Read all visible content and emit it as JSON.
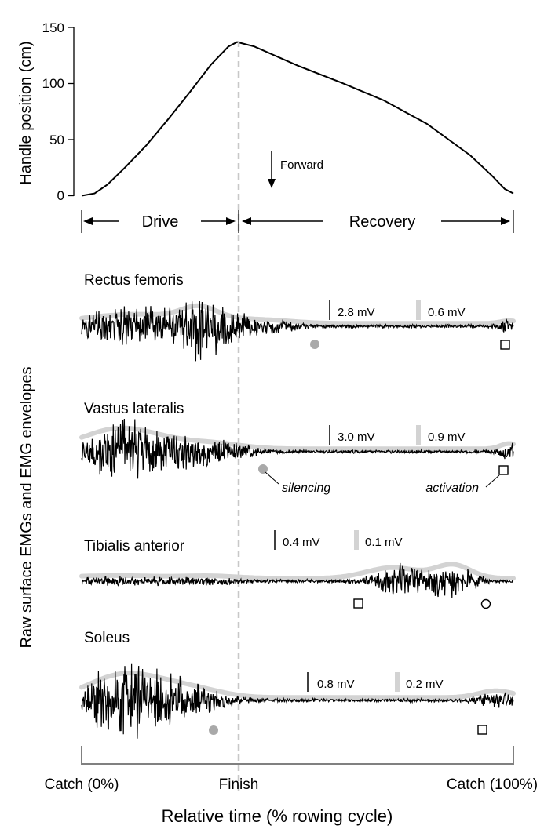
{
  "chart_data": {
    "type": "line",
    "top_panel": {
      "ylabel": "Handle position (cm)",
      "y_ticks": [
        "0",
        "50",
        "100",
        "150"
      ],
      "ylim": [
        0,
        150
      ],
      "x_range_percent": [
        0,
        100
      ],
      "finish_percent": 36,
      "peak_value": 137,
      "series": [
        {
          "x": [
            0,
            3,
            6,
            10,
            15,
            20,
            25,
            30,
            34,
            36,
            40,
            50,
            60,
            70,
            80,
            90,
            95,
            98,
            100
          ],
          "y": [
            0,
            2,
            10,
            25,
            45,
            68,
            92,
            117,
            133,
            137,
            133,
            116,
            101,
            85,
            64,
            36,
            18,
            6,
            2
          ]
        }
      ],
      "annotation": "Forward"
    },
    "phases": {
      "drive": "Drive",
      "recovery": "Recovery"
    },
    "emg_ylabel": "Raw surface EMGs and EMG envelopes",
    "muscles": [
      {
        "name": "Rectus femoris",
        "raw_scale": "2.8 mV",
        "env_scale": "0.6 mV"
      },
      {
        "name": "Vastus lateralis",
        "raw_scale": "3.0 mV",
        "env_scale": "0.9 mV"
      },
      {
        "name": "Tibialis anterior",
        "raw_scale": "0.4 mV",
        "env_scale": "0.1 mV"
      },
      {
        "name": "Soleus",
        "raw_scale": "0.8 mV",
        "env_scale": "0.2 mV"
      }
    ],
    "labels": {
      "silencing": "silencing",
      "activation": "activation"
    },
    "x_ticks": {
      "catch_start": "Catch (0%)",
      "finish": "Finish",
      "catch_end": "Catch (100%)"
    },
    "xlabel": "Relative time (% rowing cycle)",
    "colors": {
      "raw": "#000000",
      "envelope": "#d3d3d3",
      "finish_line": "#c8c8c8"
    }
  }
}
